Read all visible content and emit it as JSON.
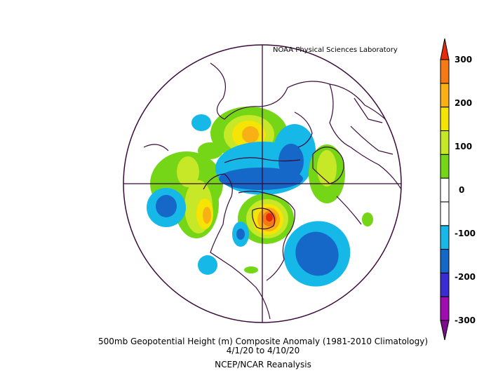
{
  "credit": "NOAA Physical Sciences Laboratory",
  "caption": {
    "line1": "500mb Geopotential Height (m) Composite Anomaly (1981-2010 Climatology)",
    "line2": "4/1/20  to 4/10/20",
    "line3": "NCEP/NCAR Reanalysis"
  },
  "colorbar": {
    "labels": [
      "300",
      "200",
      "100",
      "0",
      "-100",
      "-200",
      "-300"
    ],
    "colors": [
      "#7a0e8a",
      "#a00cb0",
      "#3a2bd2",
      "#1567c8",
      "#16b8e8",
      "#ffffff",
      "#ffffff",
      "#74d616",
      "#c6e826",
      "#f6e404",
      "#f8b014",
      "#f47a14",
      "#e62b0a"
    ]
  },
  "anomalies": [
    {
      "feature": "positive anomaly over Hudson Bay / Canada",
      "peak": 300
    },
    {
      "feature": "positive anomaly over Greenland / N Atlantic",
      "peak": 200
    },
    {
      "feature": "positive anomaly over Alaska / Bering",
      "peak": 200
    },
    {
      "feature": "negative anomaly over Arctic / Siberia",
      "peak": -150
    },
    {
      "feature": "negative anomaly over N Pacific",
      "peak": -150
    },
    {
      "feature": "negative anomaly over NE Atlantic",
      "peak": -150
    }
  ]
}
